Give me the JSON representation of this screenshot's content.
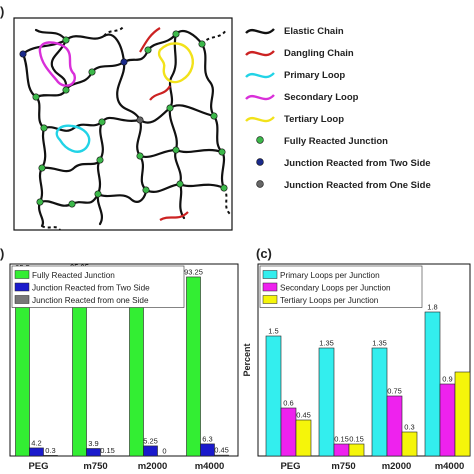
{
  "panel_labels": {
    "a": ")",
    "b": ")",
    "c": "(c)"
  },
  "legend_top": [
    {
      "label": "Elastic Chain",
      "kind": "line",
      "color": "#111111"
    },
    {
      "label": "Dangling Chain",
      "kind": "line",
      "color": "#cc2222"
    },
    {
      "label": "Primary Loop",
      "kind": "line",
      "color": "#22d3e6"
    },
    {
      "label": "Secondary Loop",
      "kind": "line",
      "color": "#d92fd9"
    },
    {
      "label": "Tertiary Loop",
      "kind": "line",
      "color": "#f2e21a"
    },
    {
      "label": "Fully Reacted Junction",
      "kind": "dot",
      "color": "#3cb84a"
    },
    {
      "label": "Junction Reacted from Two Side",
      "kind": "dot",
      "color": "#1a2a8a"
    },
    {
      "label": "Junction Reacted from One Side",
      "kind": "dot",
      "color": "#666666"
    }
  ],
  "chart_data": [
    {
      "type": "bar",
      "categories": [
        "PEG",
        "m750",
        "m2000",
        "m4000"
      ],
      "ylim": [
        0,
        100
      ],
      "ylabel": "",
      "legend_position": "top-left",
      "series": [
        {
          "name": "Fully Reacted Junction",
          "color": "#33ee33",
          "values": [
            95.5,
            95.95,
            94.75,
            93.25
          ],
          "labels": [
            "95.5",
            "95.95",
            "94.75",
            "93.25"
          ]
        },
        {
          "name": "Junction Reacted from Two Side",
          "color": "#1a1acc",
          "values": [
            4.2,
            3.9,
            5.25,
            6.3
          ],
          "labels": [
            "4.2",
            "3.9",
            "5.25",
            "6.3"
          ]
        },
        {
          "name": "Junction Reacted from one Side",
          "color": "#777777",
          "values": [
            0.3,
            0.15,
            0,
            0.45
          ],
          "labels": [
            "0.3",
            "0.15",
            "0",
            "0.45"
          ]
        }
      ]
    },
    {
      "type": "bar",
      "categories": [
        "PEG",
        "m750",
        "m2000",
        "m4000"
      ],
      "ylim": [
        0,
        2.4
      ],
      "ylabel": "Percent",
      "legend_position": "top-left",
      "series": [
        {
          "name": "Primary Loops per Junction",
          "color": "#33eeee",
          "values": [
            1.5,
            1.35,
            1.35,
            1.8
          ],
          "labels": [
            "1.5",
            "1.35",
            "1.35",
            "1.8"
          ]
        },
        {
          "name": "Secondary Loops per Junction",
          "color": "#ee22ee",
          "values": [
            0.6,
            0.15,
            0.75,
            0.9
          ],
          "labels": [
            "0.6",
            "0.15",
            "0.75",
            "0.9"
          ]
        },
        {
          "name": "Tertiary Loops per Junction",
          "color": "#f5f50a",
          "values": [
            0.45,
            0.15,
            0.3,
            1.05
          ],
          "labels": [
            "0.45",
            "0.15",
            "0.3",
            ""
          ]
        }
      ]
    }
  ]
}
